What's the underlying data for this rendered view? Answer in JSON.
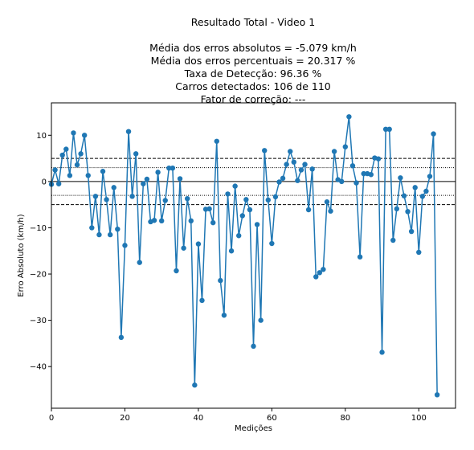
{
  "chart_data": {
    "type": "line",
    "title": "Resultado Total - Video 1",
    "subtitle_lines": [
      "Média dos erros absolutos =  -5.079 km/h",
      "Média dos erros percentuais = 20.317 %",
      "Taxa de Detecção: 96.36 %",
      "Carros detectados: 106 de 110",
      "Fator de correção: ---"
    ],
    "xlabel": "Medições",
    "ylabel": "Erro Absoluto (km/h)",
    "xlim": [
      0,
      110
    ],
    "ylim": [
      -49,
      17
    ],
    "xticks": [
      0,
      20,
      40,
      60,
      80,
      100
    ],
    "yticks": [
      10,
      0,
      -10,
      -20,
      -30,
      -40
    ],
    "ytick_labels": [
      "10",
      "0",
      "−10",
      "−20",
      "−30",
      "−40"
    ],
    "grid": false,
    "series_color": "#1f77b4",
    "reference_lines": [
      {
        "y": 0,
        "style": "solid"
      },
      {
        "y": 5,
        "style": "dashed"
      },
      {
        "y": -5,
        "style": "dashed"
      },
      {
        "y": 3,
        "style": "dotted"
      },
      {
        "y": -3,
        "style": "dotted"
      }
    ],
    "series": [
      {
        "x": [
          0,
          1,
          2,
          3,
          4,
          5,
          6,
          7,
          8,
          9,
          10,
          11,
          12,
          13,
          14,
          15,
          16,
          17,
          18,
          19,
          20,
          21,
          22,
          23,
          24,
          25,
          26,
          27,
          28,
          29,
          30,
          31,
          32,
          33,
          34,
          35,
          36,
          37,
          38,
          39,
          40,
          41,
          42,
          43,
          44,
          45,
          46,
          47,
          48,
          49,
          50,
          51,
          52,
          53,
          54,
          55,
          56,
          57,
          58,
          59,
          60,
          61,
          62,
          63,
          64,
          65,
          66,
          67,
          68,
          69,
          70,
          71,
          72,
          73,
          74,
          75,
          76,
          77,
          78,
          79,
          80,
          81,
          82,
          83,
          84,
          85,
          86,
          87,
          88,
          89,
          90,
          91,
          92,
          93,
          94,
          95,
          96,
          97,
          98,
          99,
          100,
          101,
          102,
          103,
          104,
          105
        ],
        "values": [
          -0.6,
          2.5,
          -0.5,
          5.7,
          7.0,
          1.3,
          10.5,
          3.6,
          6.0,
          10.0,
          1.3,
          -10.0,
          -3.2,
          -11.5,
          2.2,
          -3.9,
          -11.5,
          -1.3,
          -10.3,
          -33.7,
          -13.8,
          10.8,
          -3.2,
          6.0,
          -17.5,
          -0.5,
          0.5,
          -8.7,
          -8.4,
          2.0,
          -8.5,
          -4.1,
          2.9,
          2.9,
          -19.3,
          0.6,
          -14.4,
          -3.7,
          -8.5,
          -44.0,
          -13.5,
          -25.7,
          -6.0,
          -5.9,
          -8.9,
          8.7,
          -21.4,
          -28.9,
          -2.7,
          -15.0,
          -1.0,
          -11.7,
          -7.4,
          -3.9,
          -6.1,
          -35.6,
          -9.3,
          -30.0,
          6.7,
          -4.0,
          -13.4,
          -3.3,
          -0.1,
          0.7,
          3.7,
          6.5,
          4.2,
          0.2,
          2.5,
          3.7,
          -6.1,
          2.7,
          -20.6,
          -19.7,
          -19.0,
          -4.4,
          -6.4,
          6.5,
          0.4,
          0.0,
          7.5,
          14.0,
          3.4,
          -0.3,
          -16.3,
          1.7,
          1.7,
          1.5,
          5.1,
          4.9,
          -36.9,
          11.3,
          11.3,
          -12.7,
          -5.9,
          0.8,
          -3.1,
          -6.5,
          -10.8,
          -1.3,
          -15.3,
          -3.2,
          -2.1,
          1.1,
          10.3,
          -46.1
        ]
      }
    ]
  }
}
